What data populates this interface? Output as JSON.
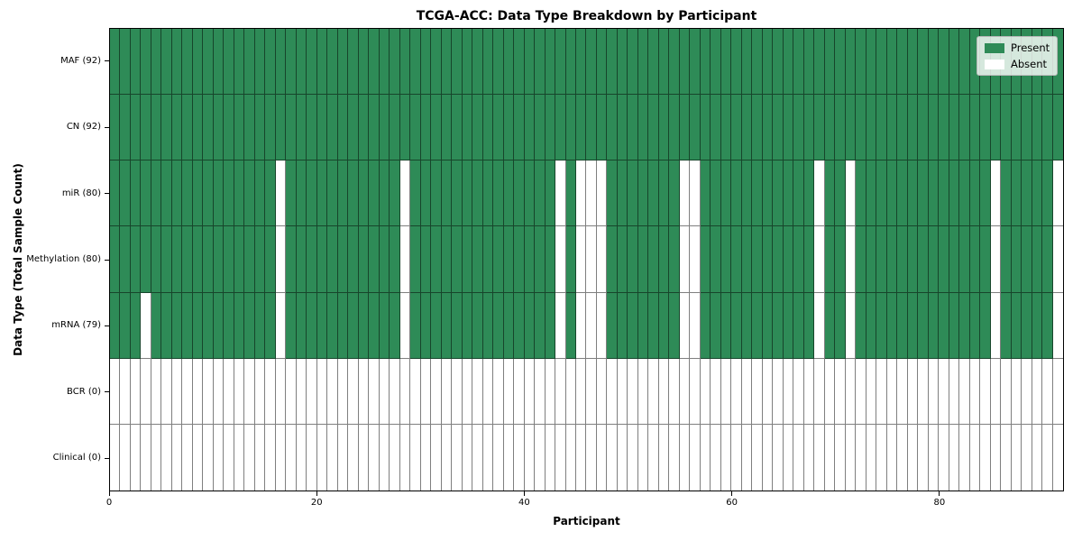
{
  "chart_data": {
    "type": "heatmap",
    "title": "TCGA-ACC: Data Type Breakdown by Participant",
    "xlabel": "Participant",
    "ylabel": "Data Type (Total Sample Count)",
    "x_ticks": [
      0,
      20,
      40,
      60,
      80
    ],
    "xlim": [
      0,
      92
    ],
    "n_participants": 92,
    "legend_position": "upper-right",
    "legend": [
      {
        "label": "Present",
        "color": "#2e8b57"
      },
      {
        "label": "Absent",
        "color": "#ffffff"
      }
    ],
    "colors": {
      "present": "#2e8b57",
      "absent": "#ffffff"
    },
    "rows": [
      {
        "label": "MAF (92)",
        "data_type": "MAF",
        "sample_count": 92,
        "absent_indices": []
      },
      {
        "label": "CN (92)",
        "data_type": "CN",
        "sample_count": 92,
        "absent_indices": []
      },
      {
        "label": "miR (80)",
        "data_type": "miR",
        "sample_count": 80,
        "absent_indices": [
          16,
          28,
          43,
          45,
          46,
          47,
          55,
          56,
          68,
          71,
          85,
          91
        ]
      },
      {
        "label": "Methylation (80)",
        "data_type": "Methylation",
        "sample_count": 80,
        "absent_indices": [
          16,
          28,
          43,
          45,
          46,
          47,
          55,
          56,
          68,
          71,
          85,
          91
        ]
      },
      {
        "label": "mRNA (79)",
        "data_type": "mRNA",
        "sample_count": 79,
        "absent_indices": [
          3,
          16,
          28,
          43,
          45,
          46,
          47,
          55,
          56,
          68,
          71,
          85,
          91
        ]
      },
      {
        "label": "BCR (0)",
        "data_type": "BCR",
        "sample_count": 0,
        "all_absent": true
      },
      {
        "label": "Clinical (0)",
        "data_type": "Clinical",
        "sample_count": 0,
        "all_absent": true
      }
    ]
  }
}
